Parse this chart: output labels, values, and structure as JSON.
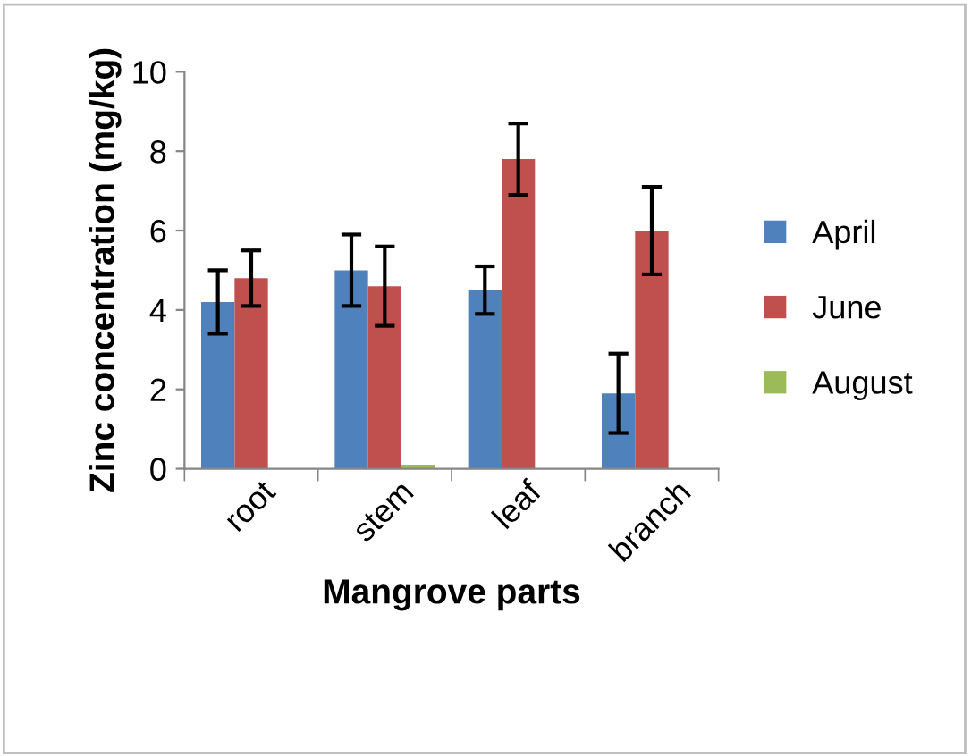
{
  "chart_data": {
    "type": "bar",
    "xlabel": "Mangrove parts",
    "ylabel": "Zinc concentration (mg/kg)",
    "categories": [
      "root",
      "stem",
      "leaf",
      "branch"
    ],
    "series": [
      {
        "name": "April",
        "color": "#4f81bd",
        "values": [
          4.2,
          5.0,
          4.5,
          1.9
        ],
        "errors": [
          0.8,
          0.9,
          0.6,
          1.0
        ]
      },
      {
        "name": "June",
        "color": "#c0504d",
        "values": [
          4.8,
          4.6,
          7.8,
          6.0
        ],
        "errors": [
          0.7,
          1.0,
          0.9,
          1.1
        ]
      },
      {
        "name": "August",
        "color": "#9bbb59",
        "values": [
          null,
          0.1,
          null,
          null
        ]
      }
    ],
    "ylim": [
      0,
      10
    ],
    "yticks": [
      0,
      2,
      4,
      6,
      8,
      10
    ],
    "grid": false,
    "legend": "right"
  }
}
